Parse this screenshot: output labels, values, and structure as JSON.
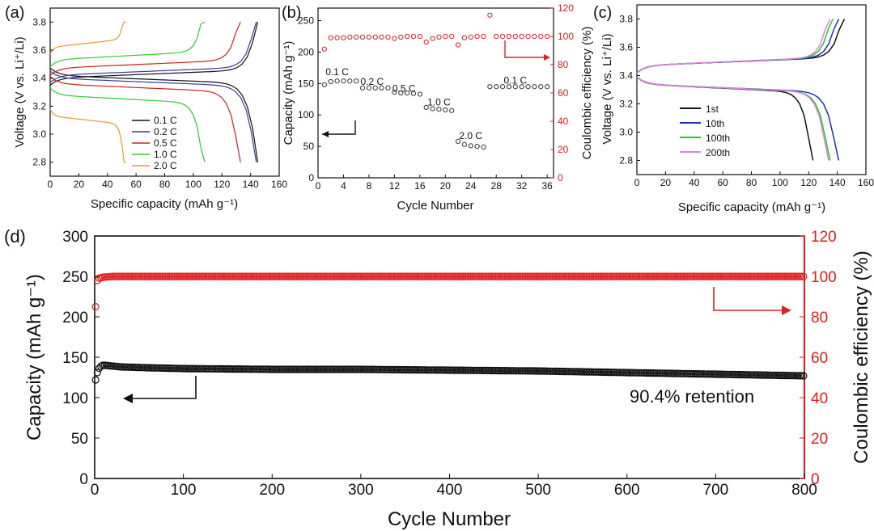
{
  "chart_data": [
    {
      "panel": "(a)",
      "type": "line",
      "xlabel": "Specific capacity (mAh g⁻¹)",
      "ylabel": "Voltage (V vs. Li⁺/Li)",
      "xlim": [
        0,
        160
      ],
      "ylim": [
        2.7,
        3.9
      ],
      "xticks": [
        "0",
        "20",
        "40",
        "60",
        "80",
        "100",
        "120",
        "140",
        "160"
      ],
      "yticks": [
        "2.8",
        "3.0",
        "3.2",
        "3.4",
        "3.6",
        "3.8"
      ],
      "legend_position": "lower-right",
      "series": [
        {
          "name": "0.1 C",
          "color": "#111111",
          "capacity": 145,
          "charge_plateau": 3.43,
          "discharge_plateau": 3.39
        },
        {
          "name": "0.2 C",
          "color": "#3b3b9a",
          "capacity": 144,
          "charge_plateau": 3.45,
          "discharge_plateau": 3.37
        },
        {
          "name": "0.5 C",
          "color": "#cc2222",
          "capacity": 133,
          "charge_plateau": 3.5,
          "discharge_plateau": 3.33
        },
        {
          "name": "1.0 C",
          "color": "#33cc33",
          "capacity": 108,
          "charge_plateau": 3.56,
          "discharge_plateau": 3.25
        },
        {
          "name": "2.0 C",
          "color": "#e69a2e",
          "capacity": 53,
          "charge_plateau": 3.65,
          "discharge_plateau": 3.1
        }
      ]
    },
    {
      "panel": "(b)",
      "type": "scatter",
      "xlabel": "Cycle Number",
      "ylabel": "Capacity (mAh g⁻¹)",
      "y2label": "Coulombic efficiency (%)",
      "xlim": [
        0,
        37
      ],
      "ylim": [
        0,
        270
      ],
      "y2lim": [
        0,
        120
      ],
      "xticks": [
        "0",
        "4",
        "8",
        "12",
        "16",
        "20",
        "24",
        "28",
        "32",
        "36"
      ],
      "yticks": [
        "0",
        "50",
        "100",
        "150",
        "200",
        "250"
      ],
      "y2ticks": [
        "0",
        "20",
        "40",
        "60",
        "80",
        "100",
        "120"
      ],
      "rate_labels": [
        "0.1 C",
        "0.2 C",
        "0.5 C",
        "1.0 C",
        "2.0 C",
        "0.1 C"
      ],
      "rate_label_cycles": [
        3,
        8.5,
        13.5,
        19,
        24,
        31
      ],
      "rate_label_values": [
        163,
        148,
        137,
        115,
        62,
        150
      ],
      "cycles": [
        1,
        2,
        3,
        4,
        5,
        6,
        7,
        8,
        9,
        10,
        11,
        12,
        13,
        14,
        15,
        16,
        17,
        18,
        19,
        20,
        21,
        22,
        23,
        24,
        25,
        26,
        27,
        28,
        29,
        30,
        31,
        32,
        33,
        34,
        35,
        36
      ],
      "capacity": [
        148,
        153,
        154,
        154,
        154,
        154,
        143,
        143,
        143,
        143,
        143,
        136,
        135,
        135,
        134,
        133,
        112,
        110,
        109,
        108,
        107,
        58,
        53,
        51,
        50,
        49,
        145,
        145,
        145,
        145,
        145,
        145,
        145,
        145,
        145,
        145
      ],
      "coulombic_efficiency": [
        91,
        99,
        99,
        99,
        99.5,
        99.5,
        99.5,
        99.5,
        99.5,
        99.5,
        99.5,
        98.5,
        99.5,
        100,
        100,
        100,
        96,
        98.5,
        99.5,
        100,
        100,
        94,
        99,
        99.5,
        100,
        100,
        115,
        100,
        100,
        100,
        100,
        100,
        100,
        100,
        100,
        100
      ]
    },
    {
      "panel": "(c)",
      "type": "line",
      "xlabel": "Specific capacity (mAh g⁻¹)",
      "ylabel": "Voltage (V vs. Li⁺/Li)",
      "xlim": [
        0,
        160
      ],
      "ylim": [
        2.7,
        3.9
      ],
      "xticks": [
        "0",
        "20",
        "40",
        "60",
        "80",
        "100",
        "120",
        "140",
        "160"
      ],
      "yticks": [
        "2.8",
        "3.0",
        "3.2",
        "3.4",
        "3.6",
        "3.8"
      ],
      "legend_position": "lower-left",
      "series": [
        {
          "name": "1st",
          "color": "#111111",
          "charge_capacity": 145,
          "discharge_capacity": 123
        },
        {
          "name": "10th",
          "color": "#1f2fbf",
          "charge_capacity": 141,
          "discharge_capacity": 141
        },
        {
          "name": "100th",
          "color": "#22cc22",
          "charge_capacity": 137,
          "discharge_capacity": 135
        },
        {
          "name": "200th",
          "color": "#e080e0",
          "charge_capacity": 135,
          "discharge_capacity": 134
        }
      ]
    },
    {
      "panel": "(d)",
      "type": "scatter",
      "xlabel": "Cycle Number",
      "ylabel": "Capacity (mAh g⁻¹)",
      "y2label": "Coulombic efficiency (%)",
      "xlim": [
        0,
        800
      ],
      "ylim": [
        0,
        300
      ],
      "y2lim": [
        0,
        120
      ],
      "xticks": [
        "0",
        "100",
        "200",
        "300",
        "400",
        "500",
        "600",
        "700",
        "800"
      ],
      "yticks": [
        "0",
        "50",
        "100",
        "150",
        "200",
        "250",
        "300"
      ],
      "y2ticks": [
        "0",
        "20",
        "40",
        "60",
        "80",
        "100",
        "120"
      ],
      "annotation": "90.4% retention",
      "capacity_points": [
        [
          1,
          122
        ],
        [
          2,
          127
        ],
        [
          4,
          135
        ],
        [
          8,
          140
        ],
        [
          12,
          140
        ],
        [
          30,
          138
        ],
        [
          60,
          137
        ],
        [
          100,
          136
        ],
        [
          200,
          135
        ],
        [
          300,
          135
        ],
        [
          400,
          134
        ],
        [
          500,
          133
        ],
        [
          600,
          131
        ],
        [
          700,
          129
        ],
        [
          800,
          127
        ]
      ],
      "ce_points": [
        [
          1,
          85
        ],
        [
          2,
          97
        ],
        [
          4,
          99
        ],
        [
          8,
          99.5
        ],
        [
          20,
          100
        ],
        [
          800,
          100
        ]
      ]
    }
  ],
  "colors": {
    "capacity": "#111111",
    "efficiency": "#e02020",
    "arrow_cap": "#111111",
    "arrow_ce": "#e02020"
  }
}
